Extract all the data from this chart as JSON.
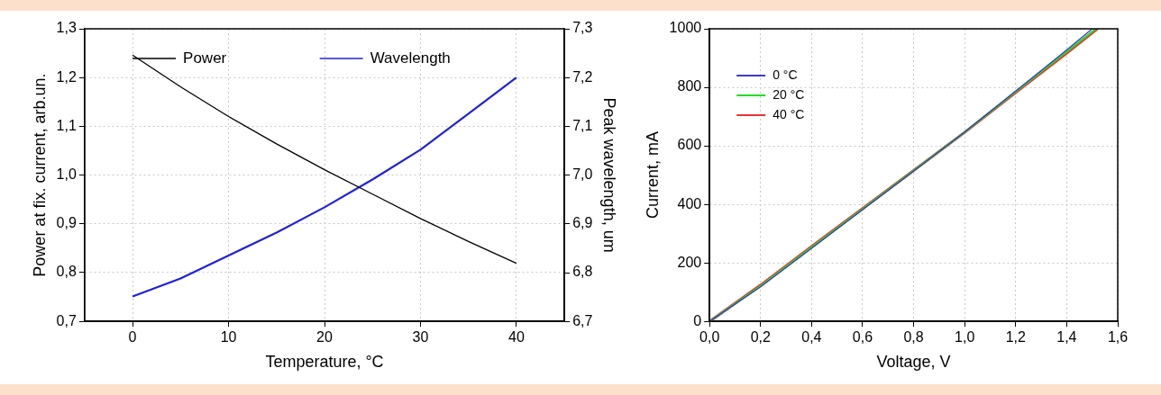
{
  "chart_data": [
    {
      "type": "line",
      "xlabel": "Temperature, °C",
      "ylabel": "Power at fix. current, arb.un.",
      "y2label": "Peak wavelength, um",
      "x": [
        0,
        5,
        10,
        15,
        20,
        25,
        30,
        35,
        40
      ],
      "series": [
        {
          "name": "Power",
          "color": "#000000",
          "values": [
            1.246,
            1.181,
            1.12,
            1.064,
            1.011,
            0.961,
            0.911,
            0.864,
            0.819
          ]
        },
        {
          "name": "Wavelength",
          "color": "#2020e0",
          "axis": "y2",
          "values": [
            6.751,
            6.788,
            6.835,
            6.882,
            6.934,
            6.991,
            7.052,
            7.126,
            7.2
          ]
        }
      ],
      "xlim": [
        -5,
        45
      ],
      "xticks": [
        0,
        10,
        20,
        30,
        40
      ],
      "ylim": [
        0.7,
        1.3
      ],
      "yticks": [
        {
          "value": 0.7,
          "label": "0,7"
        },
        {
          "value": 0.8,
          "label": "0,8"
        },
        {
          "value": 0.9,
          "label": "0,9"
        },
        {
          "value": 1.0,
          "label": "1,0"
        },
        {
          "value": 1.1,
          "label": "1,1"
        },
        {
          "value": 1.2,
          "label": "1,2"
        },
        {
          "value": 1.3,
          "label": "1,3"
        }
      ],
      "y2lim": [
        6.7,
        7.3
      ],
      "y2ticks": [
        {
          "value": 6.7,
          "label": "6,7"
        },
        {
          "value": 6.8,
          "label": "6,8"
        },
        {
          "value": 6.9,
          "label": "6,9"
        },
        {
          "value": 7.0,
          "label": "7,0"
        },
        {
          "value": 7.1,
          "label": "7,1"
        },
        {
          "value": 7.2,
          "label": "7,2"
        },
        {
          "value": 7.3,
          "label": "7,3"
        }
      ],
      "grid": true,
      "legend": "top"
    },
    {
      "type": "line",
      "xlabel": "Voltage, V",
      "ylabel": "Current, mA",
      "series": [
        {
          "name": "0 °C",
          "color": "#3a3ac8",
          "x": [
            0,
            0.2,
            0.4,
            0.6,
            0.8,
            1.0,
            1.2,
            1.4,
            1.5
          ],
          "values": [
            0,
            118,
            250,
            382,
            514,
            647,
            787,
            928,
            1000
          ]
        },
        {
          "name": "20 °C",
          "color": "#22dd22",
          "x": [
            0,
            0.2,
            0.4,
            0.6,
            0.8,
            1.0,
            1.2,
            1.4,
            1.515
          ],
          "values": [
            0,
            121,
            253,
            384,
            515,
            647,
            785,
            922,
            1000
          ]
        },
        {
          "name": "40 °C",
          "color": "#ee3333",
          "x": [
            0,
            0.2,
            0.4,
            0.6,
            0.8,
            1.0,
            1.2,
            1.4,
            1.52
          ],
          "values": [
            0,
            124,
            256,
            386,
            516,
            646,
            782,
            917,
            1000
          ]
        }
      ],
      "xlim": [
        0,
        1.6
      ],
      "xticks": [
        {
          "value": 0,
          "label": "0,0"
        },
        {
          "value": 0.2,
          "label": "0,2"
        },
        {
          "value": 0.4,
          "label": "0,4"
        },
        {
          "value": 0.6,
          "label": "0,6"
        },
        {
          "value": 0.8,
          "label": "0,8"
        },
        {
          "value": 1.0,
          "label": "1,0"
        },
        {
          "value": 1.2,
          "label": "1,2"
        },
        {
          "value": 1.4,
          "label": "1,4"
        },
        {
          "value": 1.6,
          "label": "1,6"
        }
      ],
      "ylim": [
        0,
        1000
      ],
      "yticks": [
        0,
        200,
        400,
        600,
        800,
        1000
      ],
      "grid": true,
      "legend": "top left"
    }
  ]
}
